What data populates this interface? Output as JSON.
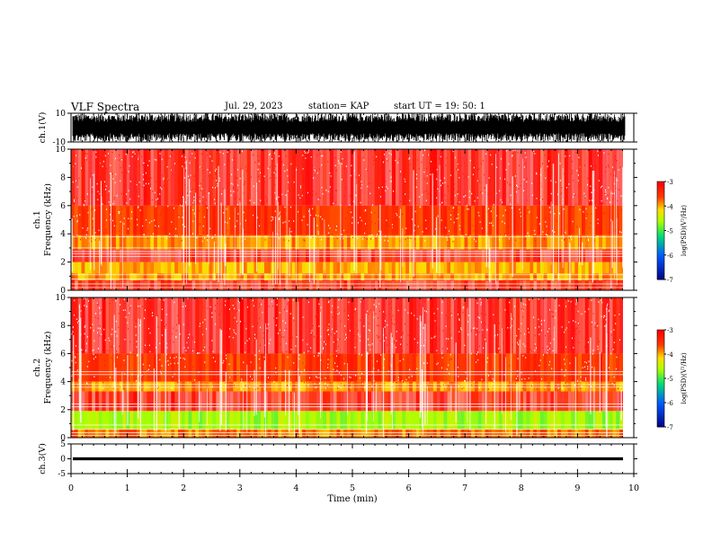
{
  "header": {
    "title": "VLF Spectra",
    "date": "Jul. 29, 2023",
    "station": "station= KAP",
    "start": "start UT =  19: 50: 1"
  },
  "chart_data": [
    {
      "type": "line",
      "name": "ch1-waveform",
      "ylabel": "ch.1(V)",
      "ylim": [
        -10,
        10
      ],
      "yticks": [
        "10",
        "-10"
      ],
      "xlim": [
        0,
        10
      ],
      "color": "#000000"
    },
    {
      "type": "heatmap",
      "name": "ch1-spectrogram",
      "ylabel": "ch.1\nFrequency (kHz)",
      "ylim": [
        0,
        10
      ],
      "yticks": [
        "0",
        "2",
        "4",
        "6",
        "8",
        "10"
      ],
      "xlim": [
        0,
        10
      ],
      "bands": [
        {
          "from": 0.0,
          "to": 0.7,
          "level": -3.3
        },
        {
          "from": 0.7,
          "to": 1.2,
          "level": -3.9
        },
        {
          "from": 1.2,
          "to": 2.0,
          "level": -4.0
        },
        {
          "from": 2.0,
          "to": 2.9,
          "level": -3.3
        },
        {
          "from": 2.9,
          "to": 3.9,
          "level": -3.9
        },
        {
          "from": 3.9,
          "to": 6.0,
          "level": -3.5
        },
        {
          "from": 6.0,
          "to": 10.0,
          "level": -3.1
        }
      ],
      "colorbar": {
        "label": "log(PSD)(V²/Hz)",
        "min": -7,
        "max": -3,
        "ticks": [
          "-3",
          "-4",
          "-5",
          "-6",
          "-7"
        ]
      }
    },
    {
      "type": "heatmap",
      "name": "ch2-spectrogram",
      "ylabel": "ch.2\nFrequency (kHz)",
      "ylim": [
        0,
        10
      ],
      "yticks": [
        "0",
        "2",
        "4",
        "6",
        "8",
        "10"
      ],
      "xlim": [
        0,
        10
      ],
      "bands": [
        {
          "from": 0.0,
          "to": 0.6,
          "level": -3.8
        },
        {
          "from": 0.6,
          "to": 1.9,
          "level": -4.6
        },
        {
          "from": 1.9,
          "to": 3.3,
          "level": -3.3
        },
        {
          "from": 3.3,
          "to": 4.0,
          "level": -3.9
        },
        {
          "from": 4.0,
          "to": 6.0,
          "level": -3.5
        },
        {
          "from": 6.0,
          "to": 10.0,
          "level": -3.1
        }
      ],
      "colorbar": {
        "label": "log(PSD)(V²/Hz)",
        "min": -7,
        "max": -3,
        "ticks": [
          "-3",
          "-4",
          "-5",
          "-6",
          "-7"
        ]
      }
    },
    {
      "type": "line",
      "name": "ch3-waveform",
      "ylabel": "ch.3(V)",
      "ylim": [
        -5,
        5
      ],
      "yticks": [
        "5",
        "0",
        "-5"
      ],
      "xlim": [
        0,
        10
      ],
      "color": "#000000",
      "xlabel": "Time (min)",
      "xticks": [
        "0",
        "1",
        "2",
        "3",
        "4",
        "5",
        "6",
        "7",
        "8",
        "9",
        "10"
      ]
    }
  ]
}
